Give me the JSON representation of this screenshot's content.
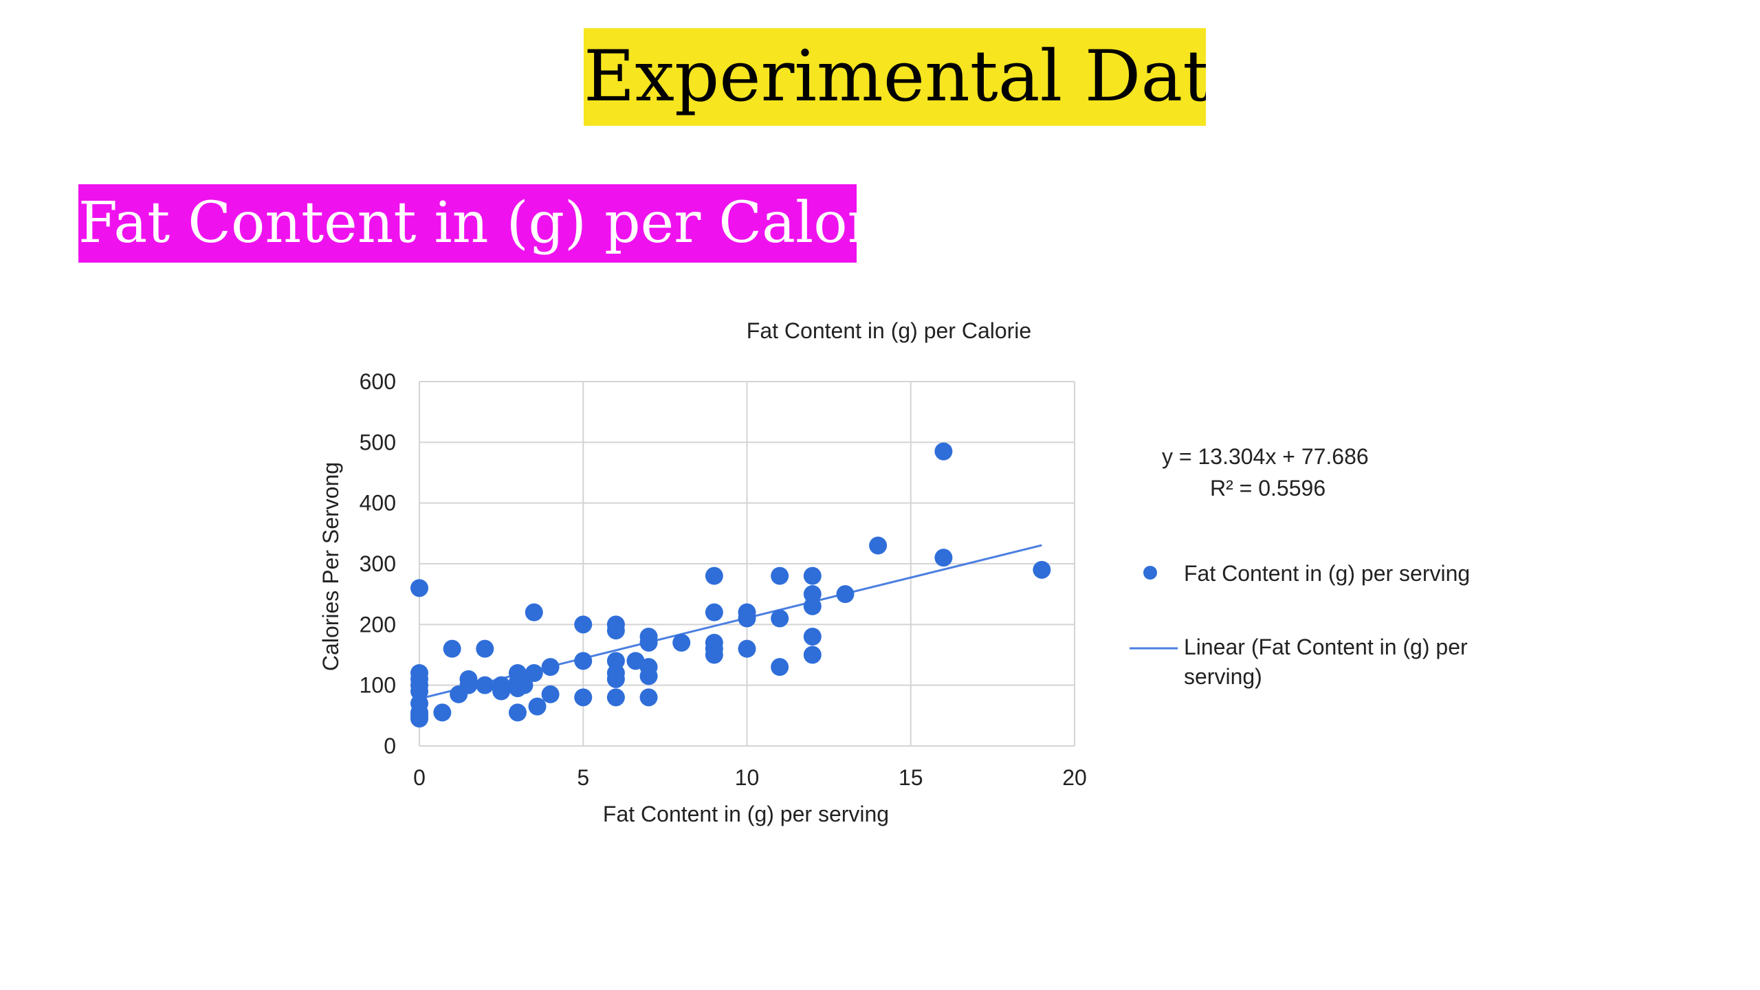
{
  "slide": {
    "title": "Experimental Data",
    "subtitle": "Fat Content in (g) per Calorie"
  },
  "colors": {
    "title_bg": "#f6e51f",
    "subtitle_bg": "#ef12ef",
    "series": "#2f6ed9",
    "trend": "#4a7fe0",
    "grid": "#d4d4d4"
  },
  "chart_data": {
    "type": "scatter",
    "title": "Fat Content in (g) per Calorie",
    "xlabel": "Fat Content in (g) per serving",
    "ylabel": "Calories Per Servong",
    "xlim": [
      0,
      20
    ],
    "ylim": [
      0,
      600
    ],
    "xticks": [
      0,
      5,
      10,
      15,
      20
    ],
    "yticks": [
      0,
      100,
      200,
      300,
      400,
      500,
      600
    ],
    "grid": true,
    "legend_position": "right",
    "series": [
      {
        "name": "Fat Content in (g) per serving",
        "points": [
          [
            0,
            260
          ],
          [
            0,
            120
          ],
          [
            0,
            110
          ],
          [
            0,
            100
          ],
          [
            0,
            90
          ],
          [
            0,
            70
          ],
          [
            0,
            55
          ],
          [
            0,
            50
          ],
          [
            0,
            45
          ],
          [
            0.7,
            55
          ],
          [
            1,
            160
          ],
          [
            1.2,
            85
          ],
          [
            1.5,
            100
          ],
          [
            1.5,
            110
          ],
          [
            2,
            160
          ],
          [
            2,
            100
          ],
          [
            2.5,
            100
          ],
          [
            2.5,
            90
          ],
          [
            3,
            120
          ],
          [
            3,
            105
          ],
          [
            3,
            95
          ],
          [
            3,
            55
          ],
          [
            3.2,
            100
          ],
          [
            3.5,
            220
          ],
          [
            3.5,
            120
          ],
          [
            3.6,
            65
          ],
          [
            4,
            130
          ],
          [
            4,
            85
          ],
          [
            5,
            200
          ],
          [
            5,
            140
          ],
          [
            5,
            80
          ],
          [
            6,
            200
          ],
          [
            6,
            190
          ],
          [
            6,
            140
          ],
          [
            6,
            120
          ],
          [
            6,
            110
          ],
          [
            6,
            80
          ],
          [
            6.6,
            140
          ],
          [
            7,
            180
          ],
          [
            7,
            170
          ],
          [
            7,
            130
          ],
          [
            7,
            115
          ],
          [
            7,
            80
          ],
          [
            8,
            170
          ],
          [
            9,
            280
          ],
          [
            9,
            220
          ],
          [
            9,
            170
          ],
          [
            9,
            160
          ],
          [
            9,
            150
          ],
          [
            10,
            220
          ],
          [
            10,
            210
          ],
          [
            10,
            160
          ],
          [
            11,
            280
          ],
          [
            11,
            210
          ],
          [
            11,
            130
          ],
          [
            12,
            280
          ],
          [
            12,
            250
          ],
          [
            12,
            230
          ],
          [
            12,
            180
          ],
          [
            12,
            150
          ],
          [
            13,
            250
          ],
          [
            14,
            330
          ],
          [
            16,
            485
          ],
          [
            16,
            310
          ],
          [
            19,
            290
          ]
        ]
      }
    ],
    "trendline": {
      "name": "Linear (Fat Content in (g) per serving)",
      "slope": 13.304,
      "intercept": 77.686,
      "x_range": [
        0,
        19
      ],
      "equation_label": "y = 13.304x + 77.686",
      "r2_label": "R² = 0.5596"
    },
    "legend": {
      "series_label": "Fat Content in (g) per serving",
      "trend_label_line1": "Linear (Fat Content in (g) per",
      "trend_label_line2": "serving)"
    }
  }
}
